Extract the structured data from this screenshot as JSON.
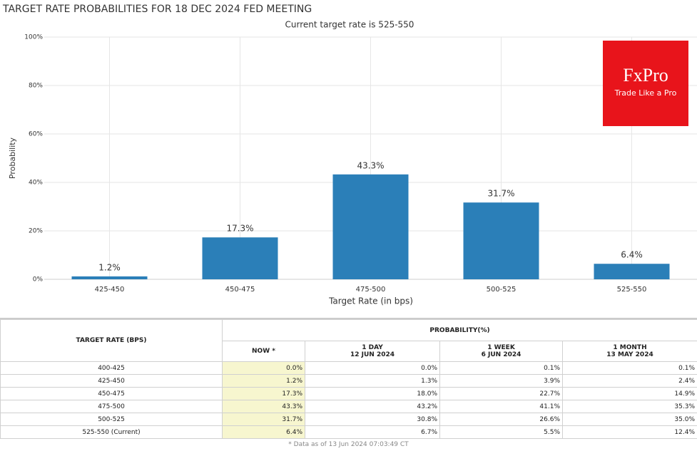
{
  "chart_data": {
    "type": "bar",
    "title": "TARGET RATE PROBABILITIES FOR 18 DEC 2024 FED MEETING",
    "subtitle": "Current target rate is 525-550",
    "y_label": "Probability",
    "x_label": "Target Rate (in bps)",
    "categories": [
      "425-450",
      "450-475",
      "475-500",
      "500-525",
      "525-550"
    ],
    "values": [
      1.2,
      17.3,
      43.3,
      31.7,
      6.4
    ],
    "value_labels": [
      "1.2%",
      "17.3%",
      "43.3%",
      "31.7%",
      "6.4%"
    ],
    "color": "#2b7fb8",
    "ylim": [
      0,
      100
    ],
    "yticks": [
      {
        "value": 0,
        "label": "0%"
      },
      {
        "value": 20,
        "label": "20%"
      },
      {
        "value": 40,
        "label": "40%"
      },
      {
        "value": 60,
        "label": "60%"
      },
      {
        "value": 80,
        "label": "80%"
      },
      {
        "value": 100,
        "label": "100%"
      }
    ],
    "grid": true
  },
  "logo": {
    "brand": "FxPro",
    "tagline": "Trade Like a Pro"
  },
  "table": {
    "rate_header": "TARGET RATE (BPS)",
    "prob_header": "PROBABILITY(%)",
    "columns": [
      {
        "period": "NOW *"
      },
      {
        "period": "1 DAY",
        "date": "12 JUN 2024"
      },
      {
        "period": "1 WEEK",
        "date": "6 JUN 2024"
      },
      {
        "period": "1 MONTH",
        "date": "13 MAY 2024"
      }
    ],
    "rows": [
      [
        "400-425",
        "0.0%",
        "0.0%",
        "0.1%",
        "0.1%"
      ],
      [
        "425-450",
        "1.2%",
        "1.3%",
        "3.9%",
        "2.4%"
      ],
      [
        "450-475",
        "17.3%",
        "18.0%",
        "22.7%",
        "14.9%"
      ],
      [
        "475-500",
        "43.3%",
        "43.2%",
        "41.1%",
        "35.3%"
      ],
      [
        "500-525",
        "31.7%",
        "30.8%",
        "26.6%",
        "35.0%"
      ],
      [
        "525-550 (Current)",
        "6.4%",
        "6.7%",
        "5.5%",
        "12.4%"
      ]
    ],
    "footnote": "* Data as of 13 Jun 2024 07:03:49 CT"
  }
}
